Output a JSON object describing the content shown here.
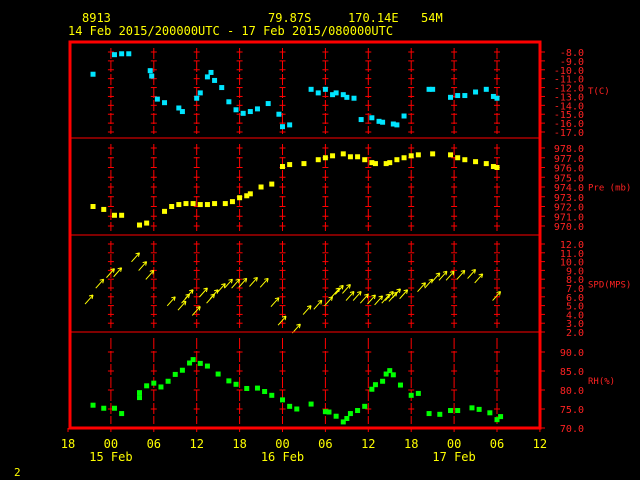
{
  "header": {
    "station": "8913",
    "lat": "79.87S",
    "lon": "170.14E",
    "elev": "54M",
    "range": "14 Feb 2015/200000UTC - 17 Feb 2015/080000UTC"
  },
  "page_number": "2",
  "colors": {
    "frame": "#ff0000",
    "text": "#ffff00",
    "temp": "#00e5ff",
    "pressure": "#ffff00",
    "wind": "#ffff00",
    "rh": "#00ff00"
  },
  "chart_data": {
    "type": "scatter",
    "x_axis": {
      "ticks": [
        "18",
        "00",
        "06",
        "12",
        "18",
        "00",
        "06",
        "12",
        "18",
        "00",
        "06",
        "12"
      ],
      "dates": [
        "15 Feb",
        "16 Feb",
        "17 Feb"
      ],
      "range_hours": [
        0,
        66
      ]
    },
    "panels": [
      {
        "name": "temp",
        "label": "T(C)",
        "ticks": [
          "-8.0",
          "-9.0",
          "-10.0",
          "-11.0",
          "-12.0",
          "-13.0",
          "-14.0",
          "-15.0",
          "-16.0",
          "-17.0"
        ],
        "ylim": [
          -17,
          -8
        ],
        "points": [
          [
            3.5,
            -10.5
          ],
          [
            6.5,
            -8.3
          ],
          [
            7.5,
            -8.2
          ],
          [
            8.5,
            -8.2
          ],
          [
            11.5,
            -10.1
          ],
          [
            11.7,
            -10.7
          ],
          [
            12.5,
            -13.3
          ],
          [
            13.5,
            -13.7
          ],
          [
            15.5,
            -14.3
          ],
          [
            16,
            -14.7
          ],
          [
            18,
            -13.2
          ],
          [
            18.5,
            -12.6
          ],
          [
            19.5,
            -10.8
          ],
          [
            20,
            -10.3
          ],
          [
            20.5,
            -11.2
          ],
          [
            21.5,
            -12.0
          ],
          [
            22.5,
            -13.6
          ],
          [
            23.5,
            -14.5
          ],
          [
            24.5,
            -14.9
          ],
          [
            25.5,
            -14.7
          ],
          [
            26.5,
            -14.4
          ],
          [
            28,
            -13.8
          ],
          [
            29.5,
            -15.0
          ],
          [
            30,
            -16.4
          ],
          [
            31,
            -16.2
          ],
          [
            34,
            -12.2
          ],
          [
            35,
            -12.6
          ],
          [
            36,
            -12.2
          ],
          [
            37,
            -12.8
          ],
          [
            37.5,
            -12.6
          ],
          [
            38.5,
            -12.8
          ],
          [
            39,
            -13.1
          ],
          [
            40,
            -13.2
          ],
          [
            41,
            -15.6
          ],
          [
            42.5,
            -15.4
          ],
          [
            43.5,
            -15.8
          ],
          [
            44,
            -15.9
          ],
          [
            45.5,
            -16.1
          ],
          [
            46,
            -16.2
          ],
          [
            47,
            -15.2
          ],
          [
            50.5,
            -12.2
          ],
          [
            51,
            -12.2
          ],
          [
            53.5,
            -13.1
          ],
          [
            54.5,
            -12.9
          ],
          [
            55.5,
            -12.9
          ],
          [
            57,
            -12.5
          ],
          [
            58.5,
            -12.2
          ],
          [
            59.5,
            -13.0
          ],
          [
            60,
            -13.2
          ]
        ]
      },
      {
        "name": "pressure",
        "label": "Pre (mb)",
        "ticks": [
          "978.0",
          "977.0",
          "976.0",
          "975.0",
          "974.0",
          "973.0",
          "972.0",
          "971.0",
          "970.0"
        ],
        "ylim": [
          970,
          978
        ],
        "points": [
          [
            3.5,
            972.0
          ],
          [
            5,
            971.7
          ],
          [
            6.5,
            971.1
          ],
          [
            7.5,
            971.1
          ],
          [
            10,
            970.1
          ],
          [
            11,
            970.3
          ],
          [
            13.5,
            971.5
          ],
          [
            14.5,
            972.0
          ],
          [
            15.5,
            972.2
          ],
          [
            16.5,
            972.3
          ],
          [
            17.5,
            972.3
          ],
          [
            18.5,
            972.2
          ],
          [
            19.5,
            972.2
          ],
          [
            20.5,
            972.3
          ],
          [
            22,
            972.3
          ],
          [
            23,
            972.5
          ],
          [
            24,
            972.9
          ],
          [
            25,
            973.1
          ],
          [
            25.5,
            973.3
          ],
          [
            27,
            974.0
          ],
          [
            28.5,
            974.3
          ],
          [
            30,
            976.1
          ],
          [
            31,
            976.3
          ],
          [
            33,
            976.4
          ],
          [
            35,
            976.8
          ],
          [
            36,
            977.0
          ],
          [
            37,
            977.2
          ],
          [
            38.5,
            977.4
          ],
          [
            39.5,
            977.1
          ],
          [
            40.5,
            977.1
          ],
          [
            41.5,
            976.8
          ],
          [
            42.5,
            976.5
          ],
          [
            43,
            976.4
          ],
          [
            44.5,
            976.4
          ],
          [
            45,
            976.5
          ],
          [
            46,
            976.8
          ],
          [
            47,
            977.0
          ],
          [
            48,
            977.2
          ],
          [
            49,
            977.3
          ],
          [
            51,
            977.4
          ],
          [
            53.5,
            977.3
          ],
          [
            54.5,
            977.0
          ],
          [
            55.5,
            976.8
          ],
          [
            57,
            976.6
          ],
          [
            58.5,
            976.4
          ],
          [
            59.5,
            976.1
          ],
          [
            60,
            976.0
          ]
        ]
      },
      {
        "name": "wind",
        "label": "SPD(MPS)",
        "ticks": [
          "12.0",
          "11.0",
          "10.0",
          "9.0",
          "8.0",
          "7.0",
          "6.0",
          "5.0",
          "4.0",
          "3.0",
          "2.0"
        ],
        "ylim": [
          2,
          12
        ],
        "points": [
          [
            3.5,
            6.2
          ],
          [
            5,
            8.0
          ],
          [
            6.5,
            9.2
          ],
          [
            7.5,
            9.3
          ],
          [
            10,
            11.0
          ],
          [
            11,
            10.0
          ],
          [
            12,
            9.0
          ],
          [
            15,
            6.0
          ],
          [
            16.5,
            5.5
          ],
          [
            17,
            6.3
          ],
          [
            17.5,
            6.8
          ],
          [
            18.5,
            4.9
          ],
          [
            19.5,
            7.0
          ],
          [
            20.5,
            6.3
          ],
          [
            21,
            6.8
          ],
          [
            22,
            7.5
          ],
          [
            23,
            8.0
          ],
          [
            24,
            8.0
          ],
          [
            25,
            8.1
          ],
          [
            26.5,
            8.2
          ],
          [
            28,
            8.1
          ],
          [
            29.5,
            5.9
          ],
          [
            30.5,
            3.8
          ],
          [
            32.5,
            2.9
          ],
          [
            34,
            5.0
          ],
          [
            35.5,
            5.6
          ],
          [
            37,
            6.0
          ],
          [
            38,
            7.0
          ],
          [
            38.5,
            7.3
          ],
          [
            39.5,
            7.4
          ],
          [
            40,
            6.6
          ],
          [
            41,
            6.6
          ],
          [
            42,
            6.3
          ],
          [
            43,
            6.2
          ],
          [
            44,
            6.1
          ],
          [
            45,
            6.3
          ],
          [
            45.5,
            6.6
          ],
          [
            46,
            6.5
          ],
          [
            46.5,
            6.9
          ],
          [
            47.5,
            6.8
          ],
          [
            50,
            7.6
          ],
          [
            51,
            8.0
          ],
          [
            52,
            8.7
          ],
          [
            53,
            8.9
          ],
          [
            54,
            8.9
          ],
          [
            55.5,
            9.0
          ],
          [
            57,
            9.1
          ],
          [
            58,
            8.6
          ],
          [
            60.5,
            6.6
          ]
        ]
      },
      {
        "name": "rh",
        "label": "RH(%)",
        "ticks": [
          "90.0",
          "85.0",
          "80.0",
          "75.0",
          "70.0"
        ],
        "ylim": [
          70,
          90
        ],
        "points": [
          [
            3.5,
            76.0
          ],
          [
            5,
            75.2
          ],
          [
            6.5,
            75.2
          ],
          [
            7.5,
            73.8
          ],
          [
            10,
            79.3
          ],
          [
            10,
            78.0
          ],
          [
            11,
            81.1
          ],
          [
            12,
            81.8
          ],
          [
            13,
            80.8
          ],
          [
            14,
            82.3
          ],
          [
            15,
            84.1
          ],
          [
            16,
            85.2
          ],
          [
            17,
            87.1
          ],
          [
            17.5,
            88.0
          ],
          [
            18.5,
            87.0
          ],
          [
            19.5,
            86.3
          ],
          [
            21,
            84.2
          ],
          [
            22.5,
            82.4
          ],
          [
            23.5,
            81.5
          ],
          [
            25,
            80.4
          ],
          [
            26.5,
            80.5
          ],
          [
            27.5,
            79.6
          ],
          [
            28.5,
            78.6
          ],
          [
            30,
            77.4
          ],
          [
            31,
            75.7
          ],
          [
            32,
            75.0
          ],
          [
            34,
            76.3
          ],
          [
            36,
            74.3
          ],
          [
            36.5,
            74.2
          ],
          [
            37.5,
            73.1
          ],
          [
            38.5,
            71.6
          ],
          [
            39,
            72.5
          ],
          [
            39.5,
            73.8
          ],
          [
            40.5,
            74.6
          ],
          [
            41.5,
            75.7
          ],
          [
            42.5,
            80.2
          ],
          [
            43,
            81.4
          ],
          [
            44,
            82.3
          ],
          [
            44.5,
            84.2
          ],
          [
            45,
            85.1
          ],
          [
            45.5,
            84.0
          ],
          [
            46.5,
            81.3
          ],
          [
            48,
            78.6
          ],
          [
            49,
            79.1
          ],
          [
            50.5,
            73.8
          ],
          [
            52,
            73.6
          ],
          [
            53.5,
            74.6
          ],
          [
            54.5,
            74.6
          ],
          [
            56.5,
            75.3
          ],
          [
            57.5,
            74.9
          ],
          [
            59,
            74.0
          ],
          [
            60,
            72.2
          ],
          [
            60.5,
            73.0
          ]
        ]
      }
    ]
  }
}
